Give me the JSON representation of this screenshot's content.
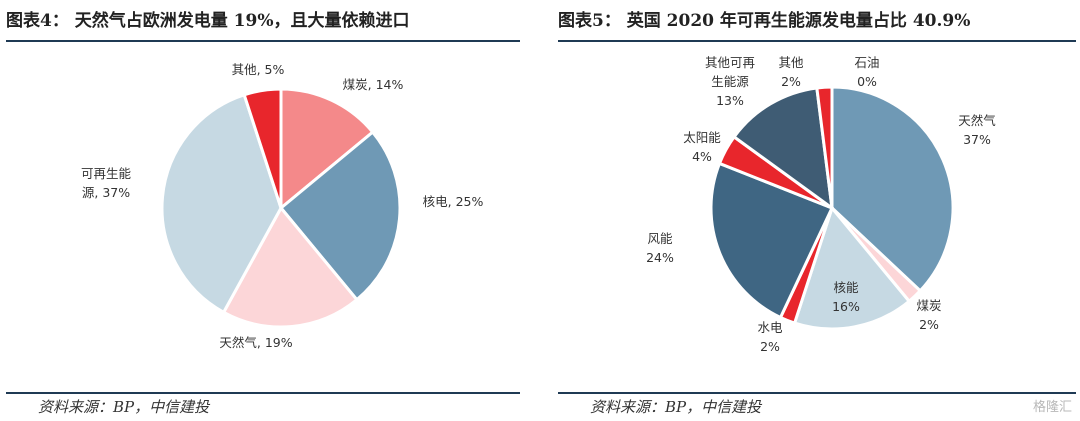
{
  "chart_data": [
    {
      "type": "pie",
      "title": "图表4： 天然气占欧洲发电量 19%，且大量依赖进口",
      "source": "资料来源：BP，中信建投",
      "slices": [
        {
          "name": "煤炭",
          "value": 14,
          "label": [
            "煤炭, 14%"
          ],
          "color": "#f4898a"
        },
        {
          "name": "核电",
          "value": 25,
          "label": [
            "核电, 25%"
          ],
          "color": "#6f99b5"
        },
        {
          "name": "天然气",
          "value": 19,
          "label": [
            "天然气, 19%"
          ],
          "color": "#fcd6d8"
        },
        {
          "name": "可再生能源",
          "value": 37,
          "label": [
            "可再生能",
            "源, 37%"
          ],
          "color": "#c6d9e3"
        },
        {
          "name": "其他",
          "value": 5,
          "label": [
            "其他, 5%"
          ],
          "color": "#e8262c"
        }
      ]
    },
    {
      "type": "pie",
      "title": "图表5： 英国 2020 年可再生能源发电量占比 40.9%",
      "source": "资料来源：BP，中信建投",
      "slices": [
        {
          "name": "天然气",
          "value": 37,
          "label": [
            "天然气",
            "37%"
          ],
          "color": "#6f99b5"
        },
        {
          "name": "煤炭",
          "value": 2,
          "label": [
            "煤炭",
            "2%"
          ],
          "color": "#fcd6d8"
        },
        {
          "name": "核能",
          "value": 16,
          "label": [
            "核能",
            "16%"
          ],
          "color": "#c6d9e3"
        },
        {
          "name": "水电",
          "value": 2,
          "label": [
            "水电",
            "2%"
          ],
          "color": "#e8262c"
        },
        {
          "name": "风能",
          "value": 24,
          "label": [
            "风能",
            "24%"
          ],
          "color": "#3f6683"
        },
        {
          "name": "太阳能",
          "value": 4,
          "label": [
            "太阳能",
            "4%"
          ],
          "color": "#e8262c"
        },
        {
          "name": "其他可再生能源",
          "value": 13,
          "label": [
            "其他可再",
            "生能源",
            "13%"
          ],
          "color": "#3f5c74"
        },
        {
          "name": "其他",
          "value": 2,
          "label": [
            "其他",
            "2%"
          ],
          "color": "#e8262c"
        },
        {
          "name": "石油",
          "value": 0,
          "label": [
            "石油",
            "0%"
          ],
          "color": "#f4898a"
        }
      ]
    }
  ],
  "watermark": "格隆汇"
}
